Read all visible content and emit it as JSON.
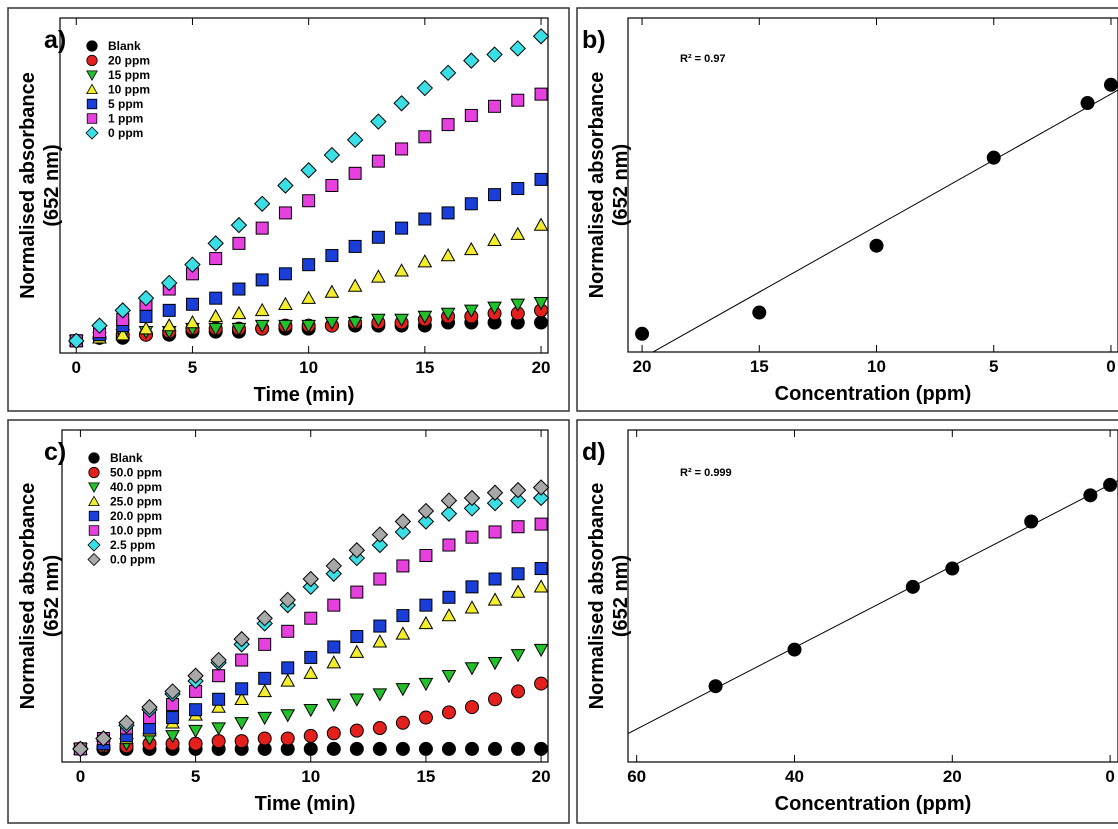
{
  "chart_data": [
    {
      "type": "scatter",
      "label": "a)",
      "x_label": "Time (min)",
      "y_label": [
        "Normalised absorbance",
        "(652 nm)"
      ],
      "x": [
        0,
        1,
        2,
        3,
        4,
        5,
        6,
        7,
        8,
        9,
        10,
        11,
        12,
        13,
        14,
        15,
        16,
        17,
        18,
        19,
        20
      ],
      "xlim": [
        -0.7,
        20.3
      ],
      "xticks": [
        0,
        5,
        10,
        15,
        20
      ],
      "ylim": [
        -0.04,
        1.06
      ],
      "legend": "upper left",
      "series": [
        {
          "name": "Blank",
          "color": "#000000",
          "marker": "circle",
          "values": [
            0,
            0.01,
            0.01,
            0.02,
            0.02,
            0.03,
            0.03,
            0.03,
            0.04,
            0.04,
            0.04,
            0.05,
            0.05,
            0.05,
            0.05,
            0.05,
            0.06,
            0.06,
            0.06,
            0.06,
            0.06
          ]
        },
        {
          "name": "20 ppm",
          "color": "#e3201b",
          "marker": "circle",
          "values": [
            0,
            0.01,
            0.02,
            0.02,
            0.03,
            0.04,
            0.04,
            0.04,
            0.04,
            0.05,
            0.05,
            0.05,
            0.06,
            0.06,
            0.06,
            0.07,
            0.08,
            0.08,
            0.09,
            0.09,
            0.1
          ]
        },
        {
          "name": "15 ppm",
          "color": "#22c02a",
          "marker": "triangle-down",
          "values": [
            0,
            0.01,
            0.02,
            0.03,
            0.03,
            0.04,
            0.04,
            0.04,
            0.05,
            0.05,
            0.05,
            0.06,
            0.06,
            0.07,
            0.07,
            0.08,
            0.09,
            0.1,
            0.11,
            0.12,
            0.125
          ]
        },
        {
          "name": "10 ppm",
          "color": "#f2ee2c",
          "marker": "triangle-up",
          "values": [
            0,
            0.01,
            0.02,
            0.04,
            0.05,
            0.06,
            0.08,
            0.09,
            0.1,
            0.12,
            0.14,
            0.16,
            0.18,
            0.21,
            0.23,
            0.26,
            0.28,
            0.3,
            0.33,
            0.35,
            0.38
          ]
        },
        {
          "name": "5 ppm",
          "color": "#1a3fd8",
          "marker": "square",
          "values": [
            0,
            0.02,
            0.05,
            0.08,
            0.1,
            0.12,
            0.14,
            0.17,
            0.2,
            0.22,
            0.25,
            0.28,
            0.31,
            0.34,
            0.37,
            0.4,
            0.42,
            0.45,
            0.48,
            0.5,
            0.53
          ]
        },
        {
          "name": "1 ppm",
          "color": "#e640de",
          "marker": "square",
          "values": [
            0,
            0.03,
            0.07,
            0.12,
            0.17,
            0.22,
            0.27,
            0.32,
            0.37,
            0.42,
            0.46,
            0.51,
            0.55,
            0.59,
            0.63,
            0.67,
            0.71,
            0.74,
            0.77,
            0.79,
            0.81
          ]
        },
        {
          "name": "0 ppm",
          "color": "#3adfe6",
          "marker": "diamond",
          "values": [
            0,
            0.05,
            0.1,
            0.14,
            0.19,
            0.25,
            0.32,
            0.38,
            0.45,
            0.51,
            0.56,
            0.61,
            0.66,
            0.72,
            0.78,
            0.83,
            0.88,
            0.92,
            0.94,
            0.96,
            1.0
          ]
        }
      ]
    },
    {
      "type": "scatter",
      "label": "b)",
      "x_label": "Concentration (ppm)",
      "y_label": [
        "Normalised absorbance",
        "(652 nm)"
      ],
      "annotation": "R² = 0.97",
      "fit": "linear",
      "x": [
        20,
        15,
        10,
        5,
        1,
        0
      ],
      "xlim": [
        20.6,
        -0.3
      ],
      "xticks": [
        20,
        15,
        10,
        5,
        0
      ],
      "ylim": [
        -0.04,
        1.06
      ],
      "series": [
        {
          "color": "#000000",
          "marker": "circle",
          "values": [
            0.02,
            0.09,
            0.31,
            0.6,
            0.78,
            0.84
          ]
        }
      ]
    },
    {
      "type": "scatter",
      "label": "c)",
      "x_label": "Time (min)",
      "y_label": [
        "Normalised absorbance",
        "(652 nm)"
      ],
      "x": [
        0,
        1,
        2,
        3,
        4,
        5,
        6,
        7,
        8,
        9,
        10,
        11,
        12,
        13,
        14,
        15,
        16,
        17,
        18,
        19,
        20
      ],
      "xlim": [
        -0.8,
        20.3
      ],
      "xticks": [
        0,
        5,
        10,
        15,
        20
      ],
      "ylim": [
        -0.05,
        1.22
      ],
      "legend": "upper left",
      "series": [
        {
          "name": "Blank",
          "color": "#000000",
          "marker": "circle",
          "values": [
            0,
            0,
            0,
            0,
            0,
            0,
            0,
            0,
            0,
            0,
            0,
            0,
            0,
            0,
            0,
            0,
            0,
            0,
            0,
            0,
            0
          ]
        },
        {
          "name": "50.0 ppm",
          "color": "#e3201b",
          "marker": "circle",
          "values": [
            0,
            0.01,
            0.01,
            0.02,
            0.02,
            0.02,
            0.03,
            0.03,
            0.04,
            0.04,
            0.05,
            0.06,
            0.07,
            0.08,
            0.1,
            0.12,
            0.14,
            0.16,
            0.19,
            0.22,
            0.25
          ]
        },
        {
          "name": "40.0 ppm",
          "color": "#22c02a",
          "marker": "triangle-down",
          "values": [
            0,
            0.01,
            0.02,
            0.04,
            0.05,
            0.07,
            0.08,
            0.1,
            0.12,
            0.13,
            0.15,
            0.17,
            0.19,
            0.21,
            0.23,
            0.25,
            0.28,
            0.31,
            0.33,
            0.36,
            0.38
          ]
        },
        {
          "name": "25.0 ppm",
          "color": "#f2ee2c",
          "marker": "triangle-up",
          "values": [
            0,
            0.02,
            0.04,
            0.07,
            0.1,
            0.13,
            0.16,
            0.19,
            0.22,
            0.26,
            0.29,
            0.33,
            0.37,
            0.41,
            0.44,
            0.48,
            0.51,
            0.54,
            0.57,
            0.6,
            0.62
          ]
        },
        {
          "name": "20.0 ppm",
          "color": "#1a3fd8",
          "marker": "square",
          "values": [
            0,
            0.02,
            0.05,
            0.08,
            0.12,
            0.15,
            0.19,
            0.23,
            0.27,
            0.31,
            0.35,
            0.39,
            0.43,
            0.47,
            0.51,
            0.55,
            0.58,
            0.62,
            0.65,
            0.67,
            0.69
          ]
        },
        {
          "name": "10.0 ppm",
          "color": "#e640de",
          "marker": "square",
          "values": [
            0,
            0.04,
            0.08,
            0.12,
            0.17,
            0.22,
            0.28,
            0.34,
            0.4,
            0.45,
            0.5,
            0.55,
            0.6,
            0.65,
            0.7,
            0.74,
            0.78,
            0.81,
            0.83,
            0.85,
            0.86
          ]
        },
        {
          "name": "2.5 ppm",
          "color": "#3adfe6",
          "marker": "diamond",
          "values": [
            0,
            0.04,
            0.09,
            0.15,
            0.21,
            0.26,
            0.33,
            0.4,
            0.48,
            0.55,
            0.62,
            0.67,
            0.73,
            0.78,
            0.83,
            0.87,
            0.9,
            0.92,
            0.94,
            0.95,
            0.96
          ]
        },
        {
          "name": "0.0 ppm",
          "color": "#a8a8a8",
          "marker": "diamond",
          "values": [
            0,
            0.04,
            0.1,
            0.16,
            0.22,
            0.28,
            0.34,
            0.42,
            0.5,
            0.57,
            0.65,
            0.7,
            0.76,
            0.82,
            0.87,
            0.91,
            0.95,
            0.96,
            0.98,
            0.99,
            1.0
          ]
        }
      ]
    },
    {
      "type": "scatter",
      "label": "d)",
      "x_label": "Concentration (ppm)",
      "y_label": [
        "Normalised absorbance",
        "(652 nm)"
      ],
      "annotation": "R² = 0.999",
      "fit": "linear",
      "x": [
        50,
        40,
        25,
        20,
        10,
        2.5,
        0
      ],
      "xlim": [
        61.1,
        -1
      ],
      "xticks": [
        60,
        40,
        20,
        0
      ],
      "ylim": [
        -0.05,
        1.22
      ],
      "series": [
        {
          "color": "#000000",
          "marker": "circle",
          "values": [
            0.24,
            0.38,
            0.62,
            0.69,
            0.87,
            0.97,
            1.01
          ]
        }
      ]
    }
  ]
}
